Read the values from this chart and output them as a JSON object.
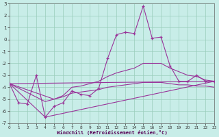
{
  "bg_color": "#c8ede8",
  "line_color": "#993399",
  "grid_color": "#99ccbb",
  "xlabel": "Windchill (Refroidissement éolien,°C)",
  "xlim": [
    0,
    23
  ],
  "ylim": [
    -7,
    3
  ],
  "yticks": [
    3,
    2,
    1,
    0,
    -1,
    -2,
    -3,
    -4,
    -5,
    -6,
    -7
  ],
  "xticks": [
    0,
    1,
    2,
    3,
    4,
    5,
    6,
    7,
    8,
    9,
    10,
    11,
    12,
    13,
    14,
    15,
    16,
    17,
    18,
    19,
    20,
    21,
    22,
    23
  ],
  "line_main_x": [
    0,
    1,
    2,
    3,
    4,
    5,
    6,
    7,
    8,
    9,
    10,
    11,
    12,
    13,
    14,
    15,
    16,
    17,
    18,
    19,
    20,
    21,
    22,
    23
  ],
  "line_main_y": [
    -3.7,
    -5.3,
    -5.4,
    -3.0,
    -6.5,
    -5.6,
    -5.3,
    -4.3,
    -4.6,
    -4.7,
    -4.1,
    -1.6,
    0.4,
    0.6,
    0.5,
    2.8,
    0.1,
    0.2,
    -2.2,
    -3.5,
    -3.5,
    -3.0,
    -3.5,
    -3.5
  ],
  "line2_x": [
    0,
    5,
    6,
    7,
    8,
    9,
    10,
    11,
    12,
    13,
    14,
    15,
    16,
    17,
    18,
    19,
    20,
    21,
    22,
    23
  ],
  "line2_y": [
    -3.7,
    -5.0,
    -4.7,
    -4.0,
    -3.9,
    -3.7,
    -3.5,
    -3.1,
    -2.8,
    -2.6,
    -2.4,
    -2.0,
    -2.0,
    -2.0,
    -2.4,
    -2.7,
    -3.0,
    -3.1,
    -3.4,
    -3.5
  ],
  "line3_x": [
    0,
    23
  ],
  "line3_y": [
    -3.7,
    -3.5
  ],
  "line4_x": [
    0,
    4,
    5,
    6,
    7,
    8,
    9,
    10,
    11,
    12,
    13,
    14,
    15,
    16,
    17,
    18,
    19,
    20,
    21,
    22,
    23
  ],
  "line4_y": [
    -3.7,
    -5.2,
    -5.0,
    -4.8,
    -4.5,
    -4.4,
    -4.3,
    -4.2,
    -4.0,
    -3.9,
    -3.8,
    -3.7,
    -3.6,
    -3.6,
    -3.6,
    -3.7,
    -3.8,
    -3.8,
    -3.9,
    -3.9,
    -4.0
  ],
  "line5_x": [
    0,
    4,
    23
  ],
  "line5_y": [
    -3.7,
    -6.5,
    -3.5
  ]
}
